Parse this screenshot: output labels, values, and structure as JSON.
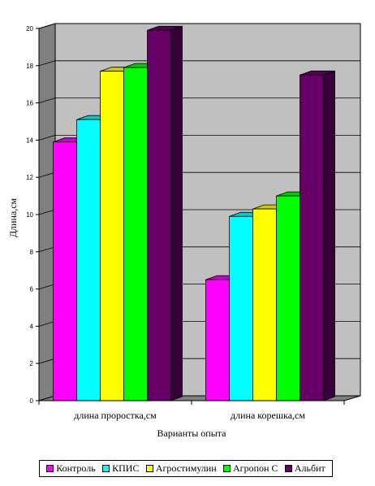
{
  "chart_data": {
    "type": "bar",
    "title": "",
    "xlabel": "Варианты опыта",
    "ylabel": "Длина,см",
    "ylim": [
      0,
      20
    ],
    "yticks": [
      0,
      2,
      4,
      6,
      8,
      10,
      12,
      14,
      16,
      18,
      20
    ],
    "grid": true,
    "legend_position": "bottom",
    "categories": [
      "длина проростка,см",
      "длина корешка,см"
    ],
    "series": [
      {
        "name": "Контроль",
        "color": "#ff00ff",
        "values": [
          13.9,
          6.5
        ]
      },
      {
        "name": "КПИС",
        "color": "#00ffff",
        "values": [
          15.1,
          9.9
        ]
      },
      {
        "name": "Агростимулин",
        "color": "#ffff00",
        "values": [
          17.7,
          10.3
        ]
      },
      {
        "name": "Агропон С",
        "color": "#00ff00",
        "values": [
          17.9,
          11.0
        ]
      },
      {
        "name": "Альбит",
        "color": "#660066",
        "values": [
          19.9,
          17.5
        ]
      }
    ],
    "wall_color": "#c0c0c0",
    "floor_color": "#808080"
  }
}
